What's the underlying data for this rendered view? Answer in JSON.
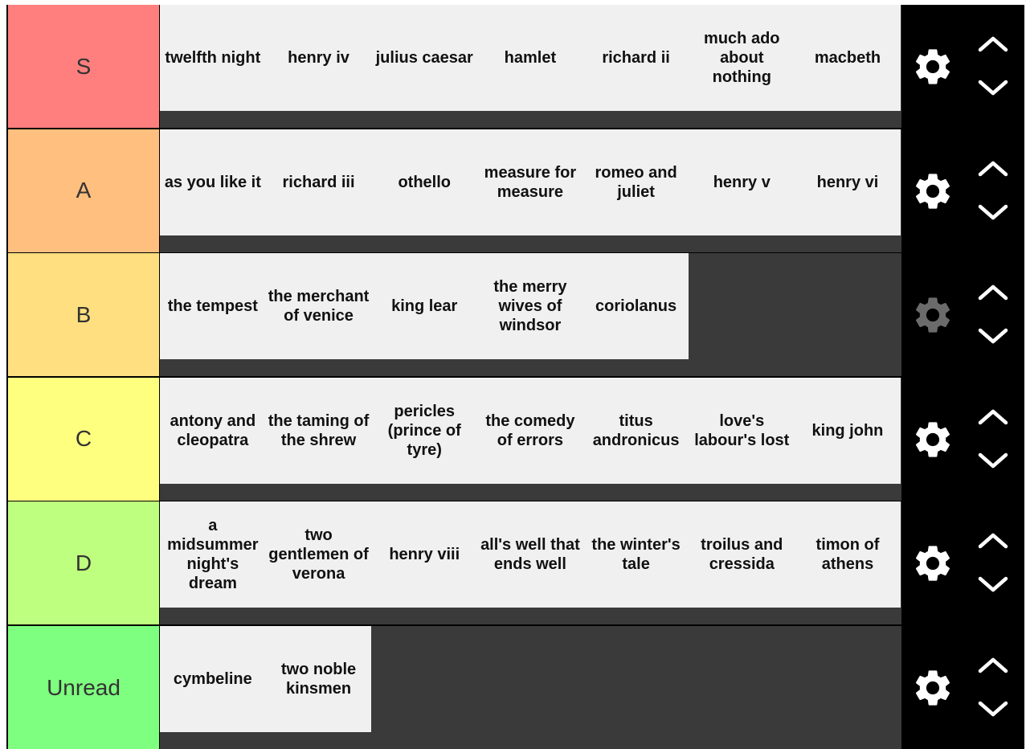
{
  "tiers": [
    {
      "label": "S",
      "color": "#ff7f7f",
      "items": [
        "twelfth night",
        "henry iv",
        "julius caesar",
        "hamlet",
        "richard ii",
        "much ado about nothing",
        "macbeth"
      ]
    },
    {
      "label": "A",
      "color": "#ffbf7f",
      "items": [
        "as you like it",
        "richard iii",
        "othello",
        "measure for measure",
        "romeo and juliet",
        "henry v",
        "henry vi"
      ]
    },
    {
      "label": "B",
      "color": "#ffdf7f",
      "items": [
        "the tempest",
        "the merchant of venice",
        "king lear",
        "the merry wives of windsor",
        "coriolanus"
      ]
    },
    {
      "label": "C",
      "color": "#ffff7f",
      "items": [
        "antony and cleopatra",
        "the taming of the shrew",
        "pericles (prince of tyre)",
        "the comedy of errors",
        "titus andronicus",
        "love's labour's lost",
        "king john"
      ]
    },
    {
      "label": "D",
      "color": "#bfff7f",
      "items": [
        "a midsummer night's dream",
        "two gentlemen of verona",
        "henry viii",
        "all's well that ends well",
        "the winter's tale",
        "troilus and cressida",
        "timon of athens"
      ]
    },
    {
      "label": "Unread",
      "color": "#7fff7f",
      "items": [
        "cymbeline",
        "two noble kinsmen"
      ]
    }
  ],
  "icons": {
    "settings": "gear-icon",
    "move_up": "chevron-up-icon",
    "move_down": "chevron-down-icon"
  },
  "colors": {
    "item_bg": "#f0f0f0",
    "row_bg": "#3a3a3a",
    "controls_bg": "#000000",
    "gear": "#ffffff",
    "gear_hover": "#6b6b6b"
  },
  "hovered_settings_tier": 2
}
